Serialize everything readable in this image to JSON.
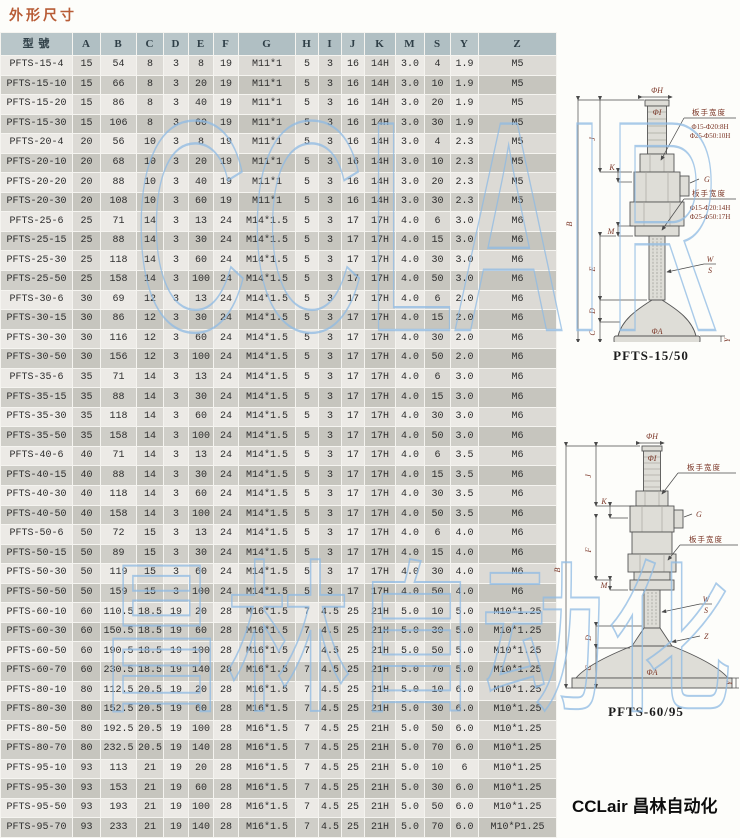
{
  "page": {
    "title": "外形尺寸",
    "brand": "CCLair 昌林自动化"
  },
  "watermarks": {
    "upper": "CCLAIR",
    "lower": "昌林自动化"
  },
  "colors": {
    "title_text": "#b85c36",
    "watermark_stroke": "#8fbbe4",
    "header_bg": "#b9c6c9",
    "row_light": "#eceae6",
    "row_dark": "#cfcec8",
    "diagram_label": "#7a3526"
  },
  "table": {
    "columns": [
      "型 號",
      "A",
      "B",
      "C",
      "D",
      "E",
      "F",
      "G",
      "H",
      "I",
      "J",
      "K",
      "M",
      "S",
      "Y",
      "Z"
    ],
    "rows": [
      [
        "PFTS-15-4",
        "15",
        "54",
        "8",
        "3",
        "8",
        "19",
        "M11*1",
        "5",
        "3",
        "16",
        "14H",
        "3.0",
        "4",
        "1.9",
        "M5"
      ],
      [
        "PFTS-15-10",
        "15",
        "66",
        "8",
        "3",
        "20",
        "19",
        "M11*1",
        "5",
        "3",
        "16",
        "14H",
        "3.0",
        "10",
        "1.9",
        "M5"
      ],
      [
        "PFTS-15-20",
        "15",
        "86",
        "8",
        "3",
        "40",
        "19",
        "M11*1",
        "5",
        "3",
        "16",
        "14H",
        "3.0",
        "20",
        "1.9",
        "M5"
      ],
      [
        "PFTS-15-30",
        "15",
        "106",
        "8",
        "3",
        "60",
        "19",
        "M11*1",
        "5",
        "3",
        "16",
        "14H",
        "3.0",
        "30",
        "1.9",
        "M5"
      ],
      [
        "PFTS-20-4",
        "20",
        "56",
        "10",
        "3",
        "8",
        "19",
        "M11*1",
        "5",
        "3",
        "16",
        "14H",
        "3.0",
        "4",
        "2.3",
        "M5"
      ],
      [
        "PFTS-20-10",
        "20",
        "68",
        "10",
        "3",
        "20",
        "19",
        "M11*1",
        "5",
        "3",
        "16",
        "14H",
        "3.0",
        "10",
        "2.3",
        "M5"
      ],
      [
        "PFTS-20-20",
        "20",
        "88",
        "10",
        "3",
        "40",
        "19",
        "M11*1",
        "5",
        "3",
        "16",
        "14H",
        "3.0",
        "20",
        "2.3",
        "M5"
      ],
      [
        "PFTS-20-30",
        "20",
        "108",
        "10",
        "3",
        "60",
        "19",
        "M11*1",
        "5",
        "3",
        "16",
        "14H",
        "3.0",
        "30",
        "2.3",
        "M5"
      ],
      [
        "PFTS-25-6",
        "25",
        "71",
        "14",
        "3",
        "13",
        "24",
        "M14*1.5",
        "5",
        "3",
        "17",
        "17H",
        "4.0",
        "6",
        "3.0",
        "M6"
      ],
      [
        "PFTS-25-15",
        "25",
        "88",
        "14",
        "3",
        "30",
        "24",
        "M14*1.5",
        "5",
        "3",
        "17",
        "17H",
        "4.0",
        "15",
        "3.0",
        "M6"
      ],
      [
        "PFTS-25-30",
        "25",
        "118",
        "14",
        "3",
        "60",
        "24",
        "M14*1.5",
        "5",
        "3",
        "17",
        "17H",
        "4.0",
        "30",
        "3.0",
        "M6"
      ],
      [
        "PFTS-25-50",
        "25",
        "158",
        "14",
        "3",
        "100",
        "24",
        "M14*1.5",
        "5",
        "3",
        "17",
        "17H",
        "4.0",
        "50",
        "3.0",
        "M6"
      ],
      [
        "PFTS-30-6",
        "30",
        "69",
        "12",
        "3",
        "13",
        "24",
        "M14*1.5",
        "5",
        "3",
        "17",
        "17H",
        "4.0",
        "6",
        "2.0",
        "M6"
      ],
      [
        "PFTS-30-15",
        "30",
        "86",
        "12",
        "3",
        "30",
        "24",
        "M14*1.5",
        "5",
        "3",
        "17",
        "17H",
        "4.0",
        "15",
        "2.0",
        "M6"
      ],
      [
        "PFTS-30-30",
        "30",
        "116",
        "12",
        "3",
        "60",
        "24",
        "M14*1.5",
        "5",
        "3",
        "17",
        "17H",
        "4.0",
        "30",
        "2.0",
        "M6"
      ],
      [
        "PFTS-30-50",
        "30",
        "156",
        "12",
        "3",
        "100",
        "24",
        "M14*1.5",
        "5",
        "3",
        "17",
        "17H",
        "4.0",
        "50",
        "2.0",
        "M6"
      ],
      [
        "PFTS-35-6",
        "35",
        "71",
        "14",
        "3",
        "13",
        "24",
        "M14*1.5",
        "5",
        "3",
        "17",
        "17H",
        "4.0",
        "6",
        "3.0",
        "M6"
      ],
      [
        "PFTS-35-15",
        "35",
        "88",
        "14",
        "3",
        "30",
        "24",
        "M14*1.5",
        "5",
        "3",
        "17",
        "17H",
        "4.0",
        "15",
        "3.0",
        "M6"
      ],
      [
        "PFTS-35-30",
        "35",
        "118",
        "14",
        "3",
        "60",
        "24",
        "M14*1.5",
        "5",
        "3",
        "17",
        "17H",
        "4.0",
        "30",
        "3.0",
        "M6"
      ],
      [
        "PFTS-35-50",
        "35",
        "158",
        "14",
        "3",
        "100",
        "24",
        "M14*1.5",
        "5",
        "3",
        "17",
        "17H",
        "4.0",
        "50",
        "3.0",
        "M6"
      ],
      [
        "PFTS-40-6",
        "40",
        "71",
        "14",
        "3",
        "13",
        "24",
        "M14*1.5",
        "5",
        "3",
        "17",
        "17H",
        "4.0",
        "6",
        "3.5",
        "M6"
      ],
      [
        "PFTS-40-15",
        "40",
        "88",
        "14",
        "3",
        "30",
        "24",
        "M14*1.5",
        "5",
        "3",
        "17",
        "17H",
        "4.0",
        "15",
        "3.5",
        "M6"
      ],
      [
        "PFTS-40-30",
        "40",
        "118",
        "14",
        "3",
        "60",
        "24",
        "M14*1.5",
        "5",
        "3",
        "17",
        "17H",
        "4.0",
        "30",
        "3.5",
        "M6"
      ],
      [
        "PFTS-40-50",
        "40",
        "158",
        "14",
        "3",
        "100",
        "24",
        "M14*1.5",
        "5",
        "3",
        "17",
        "17H",
        "4.0",
        "50",
        "3.5",
        "M6"
      ],
      [
        "PFTS-50-6",
        "50",
        "72",
        "15",
        "3",
        "13",
        "24",
        "M14*1.5",
        "5",
        "3",
        "17",
        "17H",
        "4.0",
        "6",
        "4.0",
        "M6"
      ],
      [
        "PFTS-50-15",
        "50",
        "89",
        "15",
        "3",
        "30",
        "24",
        "M14*1.5",
        "5",
        "3",
        "17",
        "17H",
        "4.0",
        "15",
        "4.0",
        "M6"
      ],
      [
        "PFTS-50-30",
        "50",
        "119",
        "15",
        "3",
        "60",
        "24",
        "M14*1.5",
        "5",
        "3",
        "17",
        "17H",
        "4.0",
        "30",
        "4.0",
        "M6"
      ],
      [
        "PFTS-50-50",
        "50",
        "159",
        "15",
        "3",
        "100",
        "24",
        "M14*1.5",
        "5",
        "3",
        "17",
        "17H",
        "4.0",
        "50",
        "4.0",
        "M6"
      ],
      [
        "PFTS-60-10",
        "60",
        "110.5",
        "18.5",
        "19",
        "20",
        "28",
        "M16*1.5",
        "7",
        "4.5",
        "25",
        "21H",
        "5.0",
        "10",
        "5.0",
        "M10*1.25"
      ],
      [
        "PFTS-60-30",
        "60",
        "150.5",
        "18.5",
        "19",
        "60",
        "28",
        "M16*1.5",
        "7",
        "4.5",
        "25",
        "21H",
        "5.0",
        "30",
        "5.0",
        "M10*1.25"
      ],
      [
        "PFTS-60-50",
        "60",
        "190.5",
        "18.5",
        "19",
        "100",
        "28",
        "M16*1.5",
        "7",
        "4.5",
        "25",
        "21H",
        "5.0",
        "50",
        "5.0",
        "M10*1.25"
      ],
      [
        "PFTS-60-70",
        "60",
        "230.5",
        "18.5",
        "19",
        "140",
        "28",
        "M16*1.5",
        "7",
        "4.5",
        "25",
        "21H",
        "5.0",
        "70",
        "5.0",
        "M10*1.25"
      ],
      [
        "PFTS-80-10",
        "80",
        "112.5",
        "20.5",
        "19",
        "20",
        "28",
        "M16*1.5",
        "7",
        "4.5",
        "25",
        "21H",
        "5.0",
        "10",
        "6.0",
        "M10*1.25"
      ],
      [
        "PFTS-80-30",
        "80",
        "152.5",
        "20.5",
        "19",
        "60",
        "28",
        "M16*1.5",
        "7",
        "4.5",
        "25",
        "21H",
        "5.0",
        "30",
        "6.0",
        "M10*1.25"
      ],
      [
        "PFTS-80-50",
        "80",
        "192.5",
        "20.5",
        "19",
        "100",
        "28",
        "M16*1.5",
        "7",
        "4.5",
        "25",
        "21H",
        "5.0",
        "50",
        "6.0",
        "M10*1.25"
      ],
      [
        "PFTS-80-70",
        "80",
        "232.5",
        "20.5",
        "19",
        "140",
        "28",
        "M16*1.5",
        "7",
        "4.5",
        "25",
        "21H",
        "5.0",
        "70",
        "6.0",
        "M10*1.25"
      ],
      [
        "PFTS-95-10",
        "93",
        "113",
        "21",
        "19",
        "20",
        "28",
        "M16*1.5",
        "7",
        "4.5",
        "25",
        "21H",
        "5.0",
        "10",
        "6",
        "M10*1.25"
      ],
      [
        "PFTS-95-30",
        "93",
        "153",
        "21",
        "19",
        "60",
        "28",
        "M16*1.5",
        "7",
        "4.5",
        "25",
        "21H",
        "5.0",
        "30",
        "6.0",
        "M10*1.25"
      ],
      [
        "PFTS-95-50",
        "93",
        "193",
        "21",
        "19",
        "100",
        "28",
        "M16*1.5",
        "7",
        "4.5",
        "25",
        "21H",
        "5.0",
        "50",
        "6.0",
        "M10*1.25"
      ],
      [
        "PFTS-95-70",
        "93",
        "233",
        "21",
        "19",
        "140",
        "28",
        "M16*1.5",
        "7",
        "4.5",
        "25",
        "21H",
        "5.0",
        "70",
        "6.0",
        "M10*P1.25"
      ]
    ]
  },
  "diagram1": {
    "caption": "PFTS-15/50",
    "dim_phi_h": "ΦH",
    "dim_phi_i": "ΦI",
    "wrench_note_1": {
      "title": "板手宽度",
      "line1": "Φ15-Φ20:8H",
      "line2": "Φ25-Φ50:10H"
    },
    "wrench_note_2": {
      "title": "板手宽度",
      "line1": "Φ15-Φ20:14H",
      "line2": "Φ25-Φ50:17H"
    },
    "dim_b": "B",
    "dim_j": "J",
    "dim_k": "K",
    "dim_m": "M",
    "dim_e": "E",
    "dim_d": "D",
    "dim_c": "C",
    "dim_g": "G",
    "dim_w": "W",
    "dim_s": "S",
    "dim_y": "Y",
    "dim_phi_a": "ΦA"
  },
  "diagram2": {
    "caption": "PFTS-60/95",
    "dim_phi_h": "ΦH",
    "dim_phi_i": "ΦI",
    "wrench_note_1": {
      "title": "板手宽度"
    },
    "wrench_note_2": {
      "title": "板手宽度"
    },
    "dim_b": "B",
    "dim_j": "J",
    "dim_k": "K",
    "dim_f": "F",
    "dim_m": "M",
    "dim_d": "D",
    "dim_c": "C",
    "dim_g": "G",
    "dim_w": "W",
    "dim_s": "S",
    "dim_y": "Y",
    "dim_z": "Z",
    "dim_phi_a": "ΦA"
  }
}
